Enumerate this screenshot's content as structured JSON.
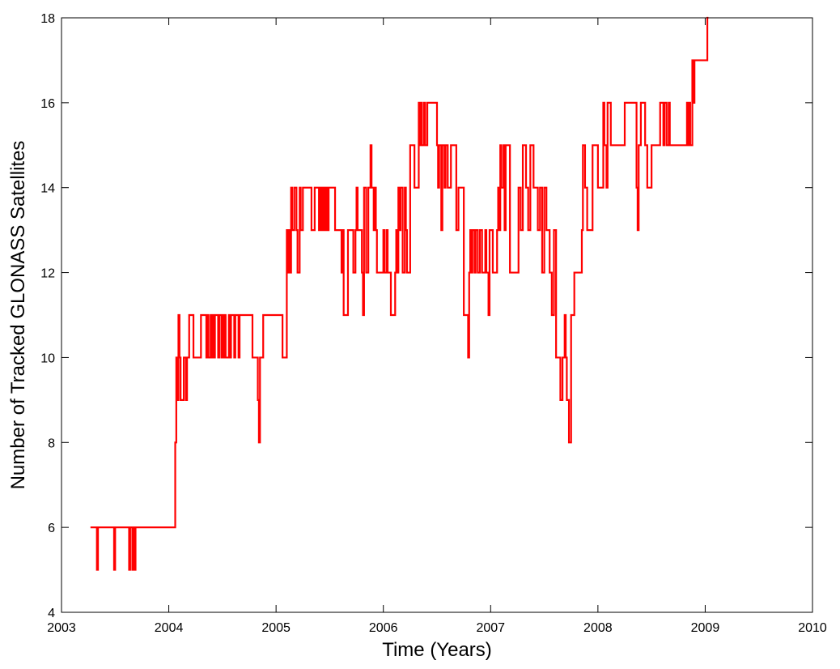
{
  "chart_data": {
    "type": "line",
    "title": "",
    "xlabel": "Time (Years)",
    "ylabel": "Number of Tracked GLONASS Satellites",
    "xlim": [
      2003,
      2010
    ],
    "ylim": [
      4,
      18
    ],
    "xticks": [
      "2003",
      "2004",
      "2005",
      "2006",
      "2007",
      "2008",
      "2009",
      "2010"
    ],
    "yticks": [
      "4",
      "6",
      "8",
      "10",
      "12",
      "14",
      "16",
      "18"
    ],
    "grid": false,
    "legend": "none",
    "series": [
      {
        "color": "#ff0000",
        "step": true,
        "x": [
          2003.27,
          2003.33,
          2003.34,
          2003.35,
          2003.49,
          2003.5,
          2003.51,
          2003.63,
          2003.64,
          2003.66,
          2003.67,
          2003.68,
          2003.69,
          2004.06,
          2004.07,
          2004.08,
          2004.09,
          2004.1,
          2004.11,
          2004.14,
          2004.16,
          2004.17,
          2004.19,
          2004.21,
          2004.23,
          2004.3,
          2004.35,
          2004.36,
          2004.37,
          2004.39,
          2004.4,
          2004.41,
          2004.42,
          2004.43,
          2004.46,
          2004.47,
          2004.49,
          2004.5,
          2004.51,
          2004.52,
          2004.53,
          2004.56,
          2004.57,
          2004.58,
          2004.61,
          2004.62,
          2004.65,
          2004.66,
          2004.72,
          2004.78,
          2004.83,
          2004.84,
          2004.85,
          2004.88,
          2004.93,
          2005.06,
          2005.1,
          2005.11,
          2005.12,
          2005.13,
          2005.14,
          2005.15,
          2005.17,
          2005.19,
          2005.2,
          2005.22,
          2005.23,
          2005.25,
          2005.33,
          2005.36,
          2005.4,
          2005.41,
          2005.42,
          2005.43,
          2005.44,
          2005.45,
          2005.46,
          2005.47,
          2005.48,
          2005.49,
          2005.55,
          2005.6,
          2005.61,
          2005.62,
          2005.63,
          2005.67,
          2005.72,
          2005.74,
          2005.75,
          2005.76,
          2005.8,
          2005.81,
          2005.82,
          2005.84,
          2005.86,
          2005.88,
          2005.89,
          2005.91,
          2005.92,
          2005.93,
          2005.94,
          2006.0,
          2006.01,
          2006.03,
          2006.04,
          2006.07,
          2006.11,
          2006.12,
          2006.13,
          2006.14,
          2006.15,
          2006.16,
          2006.18,
          2006.2,
          2006.21,
          2006.22,
          2006.25,
          2006.29,
          2006.33,
          2006.34,
          2006.35,
          2006.36,
          2006.38,
          2006.39,
          2006.41,
          2006.43,
          2006.5,
          2006.51,
          2006.52,
          2006.54,
          2006.55,
          2006.57,
          2006.58,
          2006.6,
          2006.63,
          2006.65,
          2006.68,
          2006.7,
          2006.75,
          2006.77,
          2006.79,
          2006.8,
          2006.81,
          2006.82,
          2006.83,
          2006.85,
          2006.86,
          2006.88,
          2006.9,
          2006.92,
          2006.95,
          2006.96,
          2006.98,
          2006.99,
          2007.02,
          2007.06,
          2007.07,
          2007.08,
          2007.09,
          2007.1,
          2007.12,
          2007.13,
          2007.14,
          2007.18,
          2007.26,
          2007.28,
          2007.3,
          2007.33,
          2007.35,
          2007.37,
          2007.4,
          2007.43,
          2007.44,
          2007.46,
          2007.48,
          2007.5,
          2007.52,
          2007.55,
          2007.57,
          2007.59,
          2007.61,
          2007.62,
          2007.65,
          2007.67,
          2007.69,
          2007.7,
          2007.71,
          2007.73,
          2007.75,
          2007.76,
          2007.78,
          2007.85,
          2007.86,
          2007.88,
          2007.9,
          2007.92,
          2007.95,
          2008.0,
          2008.05,
          2008.06,
          2008.08,
          2008.09,
          2008.1,
          2008.12,
          2008.25,
          2008.36,
          2008.37,
          2008.38,
          2008.4,
          2008.44,
          2008.46,
          2008.5,
          2008.58,
          2008.61,
          2008.62,
          2008.64,
          2008.66,
          2008.67,
          2008.8,
          2008.83,
          2008.84,
          2008.85,
          2008.86,
          2008.88,
          2008.89,
          2008.9,
          2009.0,
          2009.02,
          2009.03
        ],
        "y": [
          6,
          5,
          6,
          6,
          5,
          6,
          6,
          5,
          6,
          5,
          6,
          5,
          6,
          8,
          10,
          9,
          11,
          10,
          9,
          10,
          9,
          10,
          11,
          11,
          10,
          11,
          10,
          11,
          10,
          11,
          10,
          11,
          10,
          11,
          10,
          11,
          10,
          11,
          10,
          11,
          10,
          11,
          10,
          11,
          10,
          11,
          10,
          11,
          11,
          10,
          9,
          8,
          10,
          11,
          11,
          10,
          13,
          12,
          13,
          12,
          14,
          13,
          14,
          13,
          12,
          14,
          13,
          14,
          13,
          14,
          13,
          14,
          13,
          14,
          13,
          14,
          13,
          14,
          13,
          14,
          13,
          13,
          12,
          13,
          11,
          13,
          12,
          13,
          14,
          13,
          12,
          11,
          14,
          12,
          14,
          15,
          14,
          13,
          14,
          13,
          12,
          13,
          12,
          13,
          12,
          11,
          12,
          13,
          12,
          14,
          13,
          14,
          12,
          14,
          13,
          12,
          15,
          14,
          16,
          15,
          16,
          15,
          16,
          15,
          16,
          16,
          15,
          14,
          15,
          13,
          15,
          14,
          15,
          14,
          15,
          15,
          13,
          14,
          11,
          11,
          10,
          12,
          13,
          12,
          13,
          12,
          13,
          12,
          13,
          12,
          13,
          12,
          11,
          13,
          12,
          13,
          14,
          13,
          15,
          14,
          15,
          13,
          15,
          12,
          14,
          13,
          15,
          14,
          13,
          15,
          14,
          14,
          13,
          14,
          12,
          14,
          13,
          12,
          11,
          13,
          10,
          10,
          9,
          10,
          11,
          10,
          9,
          8,
          11,
          11,
          12,
          13,
          15,
          14,
          13,
          13,
          15,
          14,
          16,
          15,
          14,
          16,
          16,
          15,
          16,
          14,
          13,
          15,
          16,
          15,
          14,
          15,
          16,
          15,
          16,
          15,
          16,
          15,
          15,
          16,
          15,
          16,
          15,
          17,
          16,
          17,
          17,
          18,
          18
        ]
      }
    ]
  }
}
